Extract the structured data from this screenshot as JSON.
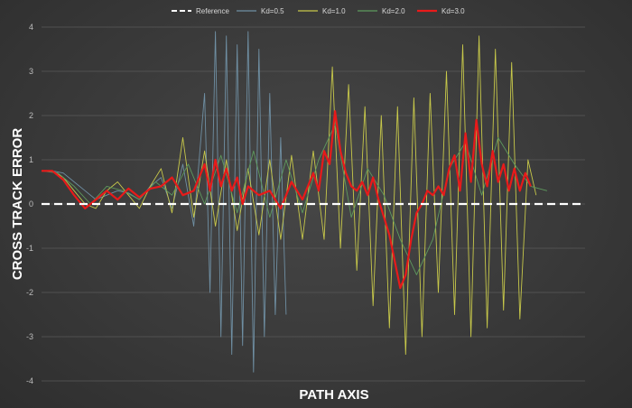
{
  "chart_data": {
    "type": "line",
    "xlabel": "PATH AXIS",
    "ylabel": "CROSS TRACK ERROR",
    "ylim": [
      -4,
      4
    ],
    "yticks": [
      4,
      3,
      2,
      1,
      0,
      -1,
      -2,
      -3,
      -4
    ],
    "xlim": [
      0,
      100
    ],
    "grid": true,
    "legend": "top-center",
    "series": [
      {
        "name": "Reference",
        "color": "#ffffff",
        "dashed": true,
        "x": [
          0,
          100
        ],
        "y": [
          0,
          0
        ]
      },
      {
        "name": "Kd=0.5",
        "color": "#6f8fa3",
        "x": [
          0,
          2,
          4,
          6,
          8,
          10,
          12,
          14,
          16,
          18,
          20,
          22,
          24,
          26,
          28,
          30,
          31,
          32,
          33,
          34,
          35,
          36,
          37,
          38,
          39,
          40,
          41,
          42,
          43,
          44,
          45
        ],
        "y": [
          0.75,
          0.75,
          0.7,
          0.5,
          0.3,
          0.1,
          0.2,
          0.3,
          0.25,
          0.1,
          0.4,
          0.6,
          -0.1,
          0.9,
          -0.5,
          2.5,
          -2.0,
          3.9,
          -3.0,
          3.8,
          -3.4,
          3.6,
          -3.2,
          3.9,
          -3.8,
          3.5,
          -3.0,
          2.5,
          -2.5,
          1.5,
          -2.5
        ]
      },
      {
        "name": "Kd=1.0",
        "color": "#c7c84a",
        "x": [
          0,
          2,
          4,
          6,
          8,
          10,
          12,
          14,
          16,
          18,
          20,
          22,
          24,
          26,
          28,
          30,
          32,
          34,
          36,
          38,
          40,
          42,
          44,
          46,
          48,
          50,
          52,
          53.5,
          55,
          56.5,
          58,
          59.5,
          61,
          62.5,
          64,
          65.5,
          67,
          68.5,
          70,
          71.5,
          73,
          74.5,
          76,
          77.5,
          79,
          80.5,
          82,
          83.5,
          85,
          86.5,
          88,
          89.5,
          91
        ],
        "y": [
          0.75,
          0.75,
          0.6,
          0.3,
          0.0,
          -0.1,
          0.3,
          0.5,
          0.2,
          -0.1,
          0.4,
          0.8,
          -0.2,
          1.5,
          -0.3,
          1.2,
          -0.5,
          1.0,
          -0.6,
          0.8,
          -0.7,
          1.0,
          -0.8,
          1.1,
          -0.8,
          1.2,
          -0.8,
          3.1,
          -1.0,
          2.7,
          -1.5,
          2.2,
          -2.3,
          2.0,
          -2.8,
          2.2,
          -3.4,
          2.4,
          -3.0,
          2.5,
          -2.0,
          3.0,
          -2.5,
          3.6,
          -3.0,
          3.8,
          -2.8,
          3.5,
          -2.4,
          3.2,
          -2.6,
          1.0,
          0.2
        ]
      },
      {
        "name": "Kd=2.0",
        "color": "#5e9a5e",
        "x": [
          0,
          3,
          6,
          9,
          12,
          15,
          18,
          21,
          24,
          27,
          30,
          33,
          36,
          39,
          42,
          45,
          48,
          51,
          54,
          57,
          60,
          63,
          66,
          69,
          72,
          75,
          78,
          81,
          84,
          87,
          90,
          93
        ],
        "y": [
          0.75,
          0.7,
          0.4,
          0.0,
          0.4,
          0.3,
          0.1,
          0.5,
          0.2,
          0.9,
          0.0,
          1.1,
          -0.2,
          1.2,
          -0.3,
          1.0,
          -0.2,
          1.0,
          1.8,
          -0.3,
          0.8,
          0.2,
          -0.8,
          -1.6,
          -0.8,
          0.8,
          1.4,
          0.2,
          1.5,
          0.9,
          0.4,
          0.3
        ]
      },
      {
        "name": "Kd=3.0",
        "color": "#e81a1a",
        "x": [
          0,
          2,
          4,
          6,
          8,
          10,
          12,
          14,
          16,
          18,
          20,
          22,
          24,
          26,
          28,
          30,
          31,
          32,
          33,
          34,
          35,
          36,
          37,
          38,
          40,
          42,
          44,
          46,
          48,
          50,
          51,
          52,
          53,
          54,
          55,
          56,
          57,
          58,
          59,
          60,
          61,
          62,
          63,
          64,
          65,
          66,
          67,
          68,
          69,
          70,
          71,
          72,
          73,
          74,
          75,
          76,
          77,
          78,
          79,
          80,
          81,
          82,
          83,
          84,
          85,
          86,
          87,
          88,
          89,
          90
        ],
        "y": [
          0.75,
          0.75,
          0.55,
          0.2,
          -0.1,
          0.1,
          0.3,
          0.1,
          0.35,
          0.15,
          0.35,
          0.4,
          0.6,
          0.2,
          0.3,
          0.9,
          0.3,
          1.0,
          0.4,
          0.8,
          0.3,
          0.6,
          0.0,
          0.4,
          0.2,
          0.3,
          -0.1,
          0.5,
          0.1,
          0.7,
          0.3,
          1.2,
          0.9,
          2.1,
          1.2,
          0.7,
          0.4,
          0.3,
          0.5,
          0.2,
          0.6,
          0.1,
          -0.3,
          -0.7,
          -1.3,
          -1.9,
          -1.6,
          -0.8,
          -0.2,
          0.0,
          0.3,
          0.2,
          0.4,
          0.2,
          0.8,
          1.1,
          0.3,
          1.6,
          0.5,
          1.9,
          0.9,
          0.4,
          1.2,
          0.5,
          0.9,
          0.3,
          0.8,
          0.3,
          0.7,
          0.4
        ]
      }
    ]
  }
}
